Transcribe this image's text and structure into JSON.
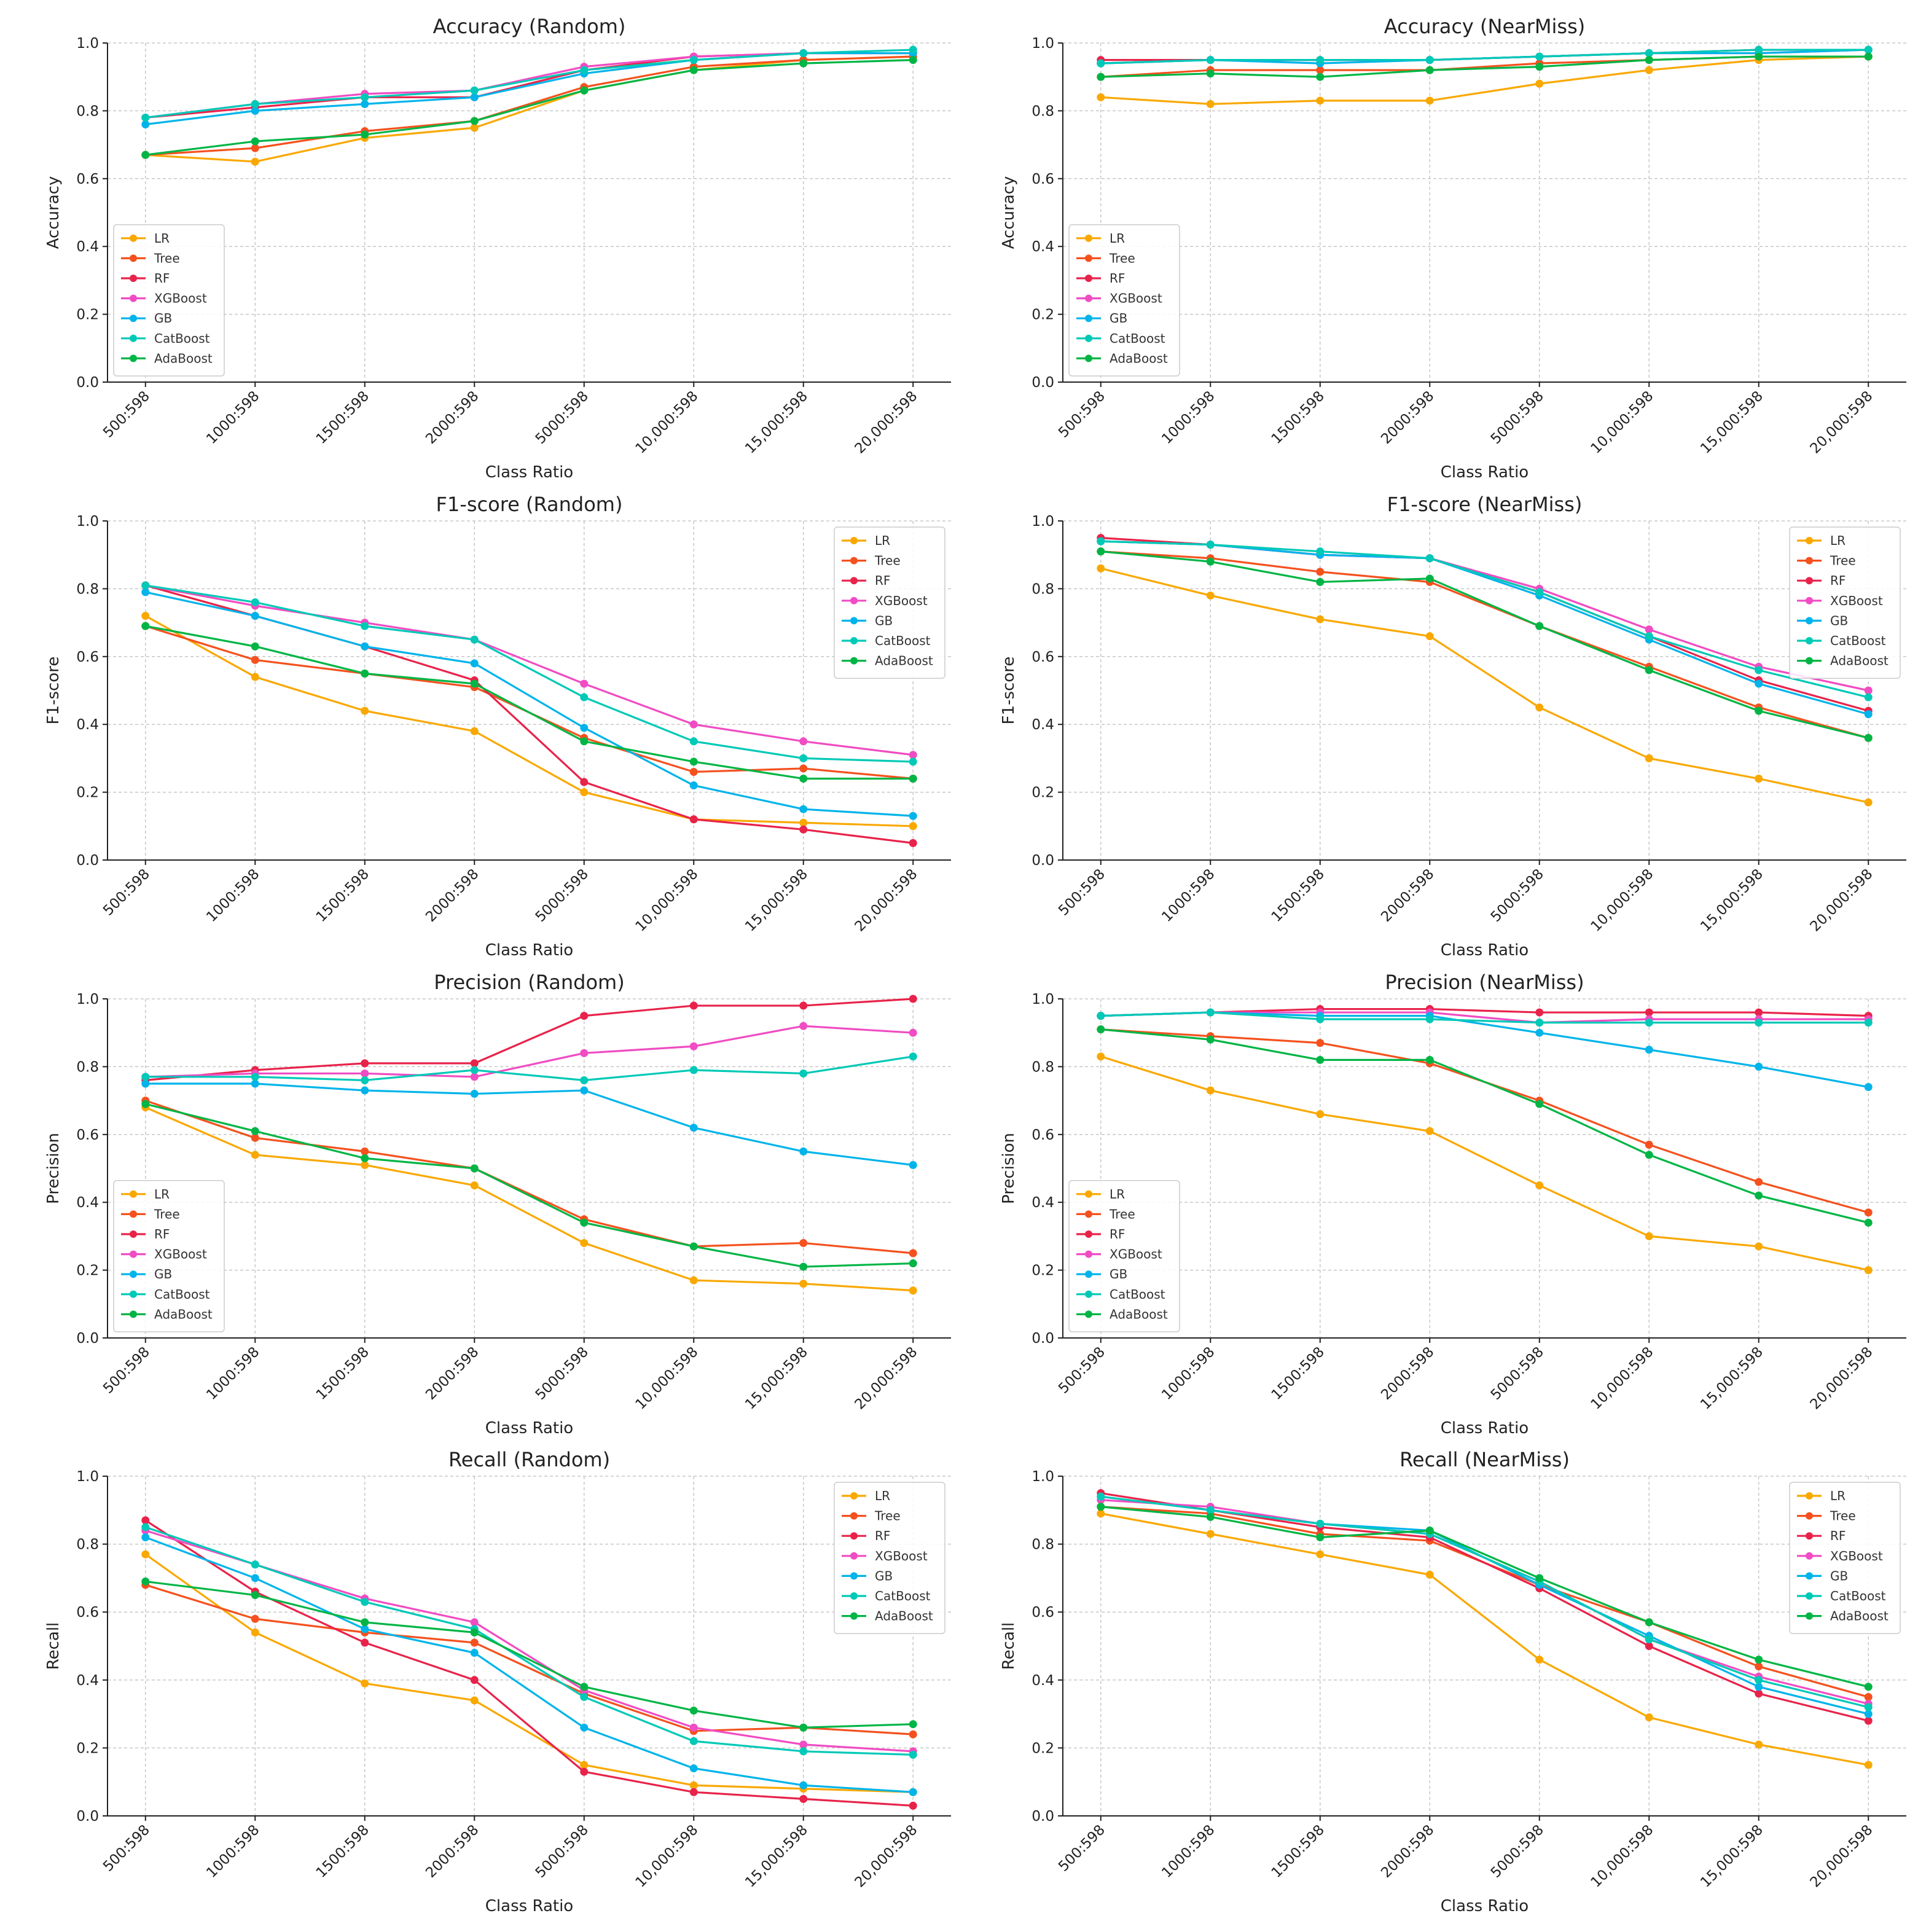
{
  "chart_data": [
    {
      "type": "line",
      "title": "Accuracy (Random)",
      "xlabel": "Class Ratio",
      "ylabel": "Accuracy",
      "ylim": [
        0,
        1
      ],
      "grid": true,
      "legend_position": "lower-left",
      "categories": [
        "500:598",
        "1000:598",
        "1500:598",
        "2000:598",
        "5000:598",
        "10,000:598",
        "15,000:598",
        "20,000:598"
      ],
      "series": [
        {
          "name": "LR",
          "color": "#f9a800",
          "values": [
            0.67,
            0.65,
            0.72,
            0.75,
            0.86,
            0.92,
            0.95,
            0.96
          ]
        },
        {
          "name": "Tree",
          "color": "#f4511e",
          "values": [
            0.67,
            0.69,
            0.74,
            0.77,
            0.87,
            0.93,
            0.95,
            0.96
          ]
        },
        {
          "name": "RF",
          "color": "#e8234a",
          "values": [
            0.78,
            0.81,
            0.84,
            0.84,
            0.92,
            0.96,
            0.97,
            0.97
          ]
        },
        {
          "name": "XGBoost",
          "color": "#f04cc3",
          "values": [
            0.78,
            0.82,
            0.85,
            0.86,
            0.93,
            0.96,
            0.97,
            0.97
          ]
        },
        {
          "name": "GB",
          "color": "#00b4ea",
          "values": [
            0.76,
            0.8,
            0.82,
            0.84,
            0.91,
            0.95,
            0.97,
            0.97
          ]
        },
        {
          "name": "CatBoost",
          "color": "#00c9b7",
          "values": [
            0.78,
            0.82,
            0.84,
            0.86,
            0.92,
            0.95,
            0.97,
            0.98
          ]
        },
        {
          "name": "AdaBoost",
          "color": "#00b545",
          "values": [
            0.67,
            0.71,
            0.73,
            0.77,
            0.86,
            0.92,
            0.94,
            0.95
          ]
        }
      ]
    },
    {
      "type": "line",
      "title": "Accuracy (NearMiss)",
      "xlabel": "Class Ratio",
      "ylabel": "Accuracy",
      "ylim": [
        0,
        1
      ],
      "grid": true,
      "legend_position": "lower-left",
      "categories": [
        "500:598",
        "1000:598",
        "1500:598",
        "2000:598",
        "5000:598",
        "10,000:598",
        "15,000:598",
        "20,000:598"
      ],
      "series": [
        {
          "name": "LR",
          "color": "#f9a800",
          "values": [
            0.84,
            0.82,
            0.83,
            0.83,
            0.88,
            0.92,
            0.95,
            0.96
          ]
        },
        {
          "name": "Tree",
          "color": "#f4511e",
          "values": [
            0.9,
            0.92,
            0.92,
            0.92,
            0.94,
            0.95,
            0.96,
            0.96
          ]
        },
        {
          "name": "RF",
          "color": "#e8234a",
          "values": [
            0.95,
            0.95,
            0.95,
            0.95,
            0.96,
            0.97,
            0.98,
            0.98
          ]
        },
        {
          "name": "XGBoost",
          "color": "#f04cc3",
          "values": [
            0.94,
            0.95,
            0.95,
            0.95,
            0.96,
            0.97,
            0.97,
            0.98
          ]
        },
        {
          "name": "GB",
          "color": "#00b4ea",
          "values": [
            0.94,
            0.95,
            0.94,
            0.95,
            0.96,
            0.97,
            0.97,
            0.98
          ]
        },
        {
          "name": "CatBoost",
          "color": "#00c9b7",
          "values": [
            0.94,
            0.95,
            0.95,
            0.95,
            0.96,
            0.97,
            0.98,
            0.98
          ]
        },
        {
          "name": "AdaBoost",
          "color": "#00b545",
          "values": [
            0.9,
            0.91,
            0.9,
            0.92,
            0.93,
            0.95,
            0.96,
            0.96
          ]
        }
      ]
    },
    {
      "type": "line",
      "title": "F1-score (Random)",
      "xlabel": "Class Ratio",
      "ylabel": "F1-score",
      "ylim": [
        0,
        1
      ],
      "grid": true,
      "legend_position": "upper-right",
      "categories": [
        "500:598",
        "1000:598",
        "1500:598",
        "2000:598",
        "5000:598",
        "10,000:598",
        "15,000:598",
        "20,000:598"
      ],
      "series": [
        {
          "name": "LR",
          "color": "#f9a800",
          "values": [
            0.72,
            0.54,
            0.44,
            0.38,
            0.2,
            0.12,
            0.11,
            0.1
          ]
        },
        {
          "name": "Tree",
          "color": "#f4511e",
          "values": [
            0.69,
            0.59,
            0.55,
            0.51,
            0.36,
            0.26,
            0.27,
            0.24
          ]
        },
        {
          "name": "RF",
          "color": "#e8234a",
          "values": [
            0.81,
            0.72,
            0.63,
            0.53,
            0.23,
            0.12,
            0.09,
            0.05
          ]
        },
        {
          "name": "XGBoost",
          "color": "#f04cc3",
          "values": [
            0.81,
            0.75,
            0.7,
            0.65,
            0.52,
            0.4,
            0.35,
            0.31
          ]
        },
        {
          "name": "GB",
          "color": "#00b4ea",
          "values": [
            0.79,
            0.72,
            0.63,
            0.58,
            0.39,
            0.22,
            0.15,
            0.13
          ]
        },
        {
          "name": "CatBoost",
          "color": "#00c9b7",
          "values": [
            0.81,
            0.76,
            0.69,
            0.65,
            0.48,
            0.35,
            0.3,
            0.29
          ]
        },
        {
          "name": "AdaBoost",
          "color": "#00b545",
          "values": [
            0.69,
            0.63,
            0.55,
            0.52,
            0.35,
            0.29,
            0.24,
            0.24
          ]
        }
      ]
    },
    {
      "type": "line",
      "title": "F1-score (NearMiss)",
      "xlabel": "Class Ratio",
      "ylabel": "F1-score",
      "ylim": [
        0,
        1
      ],
      "grid": true,
      "legend_position": "upper-right",
      "categories": [
        "500:598",
        "1000:598",
        "1500:598",
        "2000:598",
        "5000:598",
        "10,000:598",
        "15,000:598",
        "20,000:598"
      ],
      "series": [
        {
          "name": "LR",
          "color": "#f9a800",
          "values": [
            0.86,
            0.78,
            0.71,
            0.66,
            0.45,
            0.3,
            0.24,
            0.17
          ]
        },
        {
          "name": "Tree",
          "color": "#f4511e",
          "values": [
            0.91,
            0.89,
            0.85,
            0.82,
            0.69,
            0.57,
            0.45,
            0.36
          ]
        },
        {
          "name": "RF",
          "color": "#e8234a",
          "values": [
            0.95,
            0.93,
            0.9,
            0.89,
            0.79,
            0.66,
            0.53,
            0.44
          ]
        },
        {
          "name": "XGBoost",
          "color": "#f04cc3",
          "values": [
            0.94,
            0.93,
            0.9,
            0.89,
            0.8,
            0.68,
            0.57,
            0.5
          ]
        },
        {
          "name": "GB",
          "color": "#00b4ea",
          "values": [
            0.94,
            0.93,
            0.9,
            0.89,
            0.78,
            0.65,
            0.52,
            0.43
          ]
        },
        {
          "name": "CatBoost",
          "color": "#00c9b7",
          "values": [
            0.94,
            0.93,
            0.91,
            0.89,
            0.79,
            0.66,
            0.56,
            0.48
          ]
        },
        {
          "name": "AdaBoost",
          "color": "#00b545",
          "values": [
            0.91,
            0.88,
            0.82,
            0.83,
            0.69,
            0.56,
            0.44,
            0.36
          ]
        }
      ]
    },
    {
      "type": "line",
      "title": "Precision (Random)",
      "xlabel": "Class Ratio",
      "ylabel": "Precision",
      "ylim": [
        0,
        1
      ],
      "grid": true,
      "legend_position": "lower-left",
      "categories": [
        "500:598",
        "1000:598",
        "1500:598",
        "2000:598",
        "5000:598",
        "10,000:598",
        "15,000:598",
        "20,000:598"
      ],
      "series": [
        {
          "name": "LR",
          "color": "#f9a800",
          "values": [
            0.68,
            0.54,
            0.51,
            0.45,
            0.28,
            0.17,
            0.16,
            0.14
          ]
        },
        {
          "name": "Tree",
          "color": "#f4511e",
          "values": [
            0.7,
            0.59,
            0.55,
            0.5,
            0.35,
            0.27,
            0.28,
            0.25
          ]
        },
        {
          "name": "RF",
          "color": "#e8234a",
          "values": [
            0.76,
            0.79,
            0.81,
            0.81,
            0.95,
            0.98,
            0.98,
            1.0
          ]
        },
        {
          "name": "XGBoost",
          "color": "#f04cc3",
          "values": [
            0.77,
            0.78,
            0.78,
            0.77,
            0.84,
            0.86,
            0.92,
            0.9
          ]
        },
        {
          "name": "GB",
          "color": "#00b4ea",
          "values": [
            0.75,
            0.75,
            0.73,
            0.72,
            0.73,
            0.62,
            0.55,
            0.51
          ]
        },
        {
          "name": "CatBoost",
          "color": "#00c9b7",
          "values": [
            0.77,
            0.77,
            0.76,
            0.79,
            0.76,
            0.79,
            0.78,
            0.83
          ]
        },
        {
          "name": "AdaBoost",
          "color": "#00b545",
          "values": [
            0.69,
            0.61,
            0.53,
            0.5,
            0.34,
            0.27,
            0.21,
            0.22
          ]
        }
      ]
    },
    {
      "type": "line",
      "title": "Precision (NearMiss)",
      "xlabel": "Class Ratio",
      "ylabel": "Precision",
      "ylim": [
        0,
        1
      ],
      "grid": true,
      "legend_position": "lower-left",
      "categories": [
        "500:598",
        "1000:598",
        "1500:598",
        "2000:598",
        "5000:598",
        "10,000:598",
        "15,000:598",
        "20,000:598"
      ],
      "series": [
        {
          "name": "LR",
          "color": "#f9a800",
          "values": [
            0.83,
            0.73,
            0.66,
            0.61,
            0.45,
            0.3,
            0.27,
            0.2
          ]
        },
        {
          "name": "Tree",
          "color": "#f4511e",
          "values": [
            0.91,
            0.89,
            0.87,
            0.81,
            0.7,
            0.57,
            0.46,
            0.37
          ]
        },
        {
          "name": "RF",
          "color": "#e8234a",
          "values": [
            0.95,
            0.96,
            0.97,
            0.97,
            0.96,
            0.96,
            0.96,
            0.95
          ]
        },
        {
          "name": "XGBoost",
          "color": "#f04cc3",
          "values": [
            0.95,
            0.96,
            0.96,
            0.96,
            0.93,
            0.94,
            0.94,
            0.94
          ]
        },
        {
          "name": "GB",
          "color": "#00b4ea",
          "values": [
            0.95,
            0.96,
            0.95,
            0.95,
            0.9,
            0.85,
            0.8,
            0.74
          ]
        },
        {
          "name": "CatBoost",
          "color": "#00c9b7",
          "values": [
            0.95,
            0.96,
            0.94,
            0.94,
            0.93,
            0.93,
            0.93,
            0.93
          ]
        },
        {
          "name": "AdaBoost",
          "color": "#00b545",
          "values": [
            0.91,
            0.88,
            0.82,
            0.82,
            0.69,
            0.54,
            0.42,
            0.34
          ]
        }
      ]
    },
    {
      "type": "line",
      "title": "Recall (Random)",
      "xlabel": "Class Ratio",
      "ylabel": "Recall",
      "ylim": [
        0,
        1
      ],
      "grid": true,
      "legend_position": "upper-right",
      "categories": [
        "500:598",
        "1000:598",
        "1500:598",
        "2000:598",
        "5000:598",
        "10,000:598",
        "15,000:598",
        "20,000:598"
      ],
      "series": [
        {
          "name": "LR",
          "color": "#f9a800",
          "values": [
            0.77,
            0.54,
            0.39,
            0.34,
            0.15,
            0.09,
            0.08,
            0.07
          ]
        },
        {
          "name": "Tree",
          "color": "#f4511e",
          "values": [
            0.68,
            0.58,
            0.54,
            0.51,
            0.36,
            0.25,
            0.26,
            0.24
          ]
        },
        {
          "name": "RF",
          "color": "#e8234a",
          "values": [
            0.87,
            0.66,
            0.51,
            0.4,
            0.13,
            0.07,
            0.05,
            0.03
          ]
        },
        {
          "name": "XGBoost",
          "color": "#f04cc3",
          "values": [
            0.84,
            0.74,
            0.64,
            0.57,
            0.37,
            0.26,
            0.21,
            0.19
          ]
        },
        {
          "name": "GB",
          "color": "#00b4ea",
          "values": [
            0.82,
            0.7,
            0.55,
            0.48,
            0.26,
            0.14,
            0.09,
            0.07
          ]
        },
        {
          "name": "CatBoost",
          "color": "#00c9b7",
          "values": [
            0.85,
            0.74,
            0.63,
            0.55,
            0.35,
            0.22,
            0.19,
            0.18
          ]
        },
        {
          "name": "AdaBoost",
          "color": "#00b545",
          "values": [
            0.69,
            0.65,
            0.57,
            0.54,
            0.38,
            0.31,
            0.26,
            0.27
          ]
        }
      ]
    },
    {
      "type": "line",
      "title": "Recall (NearMiss)",
      "xlabel": "Class Ratio",
      "ylabel": "Recall",
      "ylim": [
        0,
        1
      ],
      "grid": true,
      "legend_position": "upper-right",
      "categories": [
        "500:598",
        "1000:598",
        "1500:598",
        "2000:598",
        "5000:598",
        "10,000:598",
        "15,000:598",
        "20,000:598"
      ],
      "series": [
        {
          "name": "LR",
          "color": "#f9a800",
          "values": [
            0.89,
            0.83,
            0.77,
            0.71,
            0.46,
            0.29,
            0.21,
            0.15
          ]
        },
        {
          "name": "Tree",
          "color": "#f4511e",
          "values": [
            0.91,
            0.89,
            0.83,
            0.81,
            0.68,
            0.57,
            0.44,
            0.35
          ]
        },
        {
          "name": "RF",
          "color": "#e8234a",
          "values": [
            0.95,
            0.9,
            0.85,
            0.82,
            0.67,
            0.5,
            0.36,
            0.28
          ]
        },
        {
          "name": "XGBoost",
          "color": "#f04cc3",
          "values": [
            0.93,
            0.91,
            0.86,
            0.83,
            0.69,
            0.52,
            0.41,
            0.33
          ]
        },
        {
          "name": "GB",
          "color": "#00b4ea",
          "values": [
            0.94,
            0.9,
            0.86,
            0.84,
            0.68,
            0.53,
            0.38,
            0.3
          ]
        },
        {
          "name": "CatBoost",
          "color": "#00c9b7",
          "values": [
            0.94,
            0.9,
            0.86,
            0.83,
            0.69,
            0.52,
            0.4,
            0.32
          ]
        },
        {
          "name": "AdaBoost",
          "color": "#00b545",
          "values": [
            0.91,
            0.88,
            0.82,
            0.84,
            0.7,
            0.57,
            0.46,
            0.38
          ]
        }
      ]
    }
  ]
}
